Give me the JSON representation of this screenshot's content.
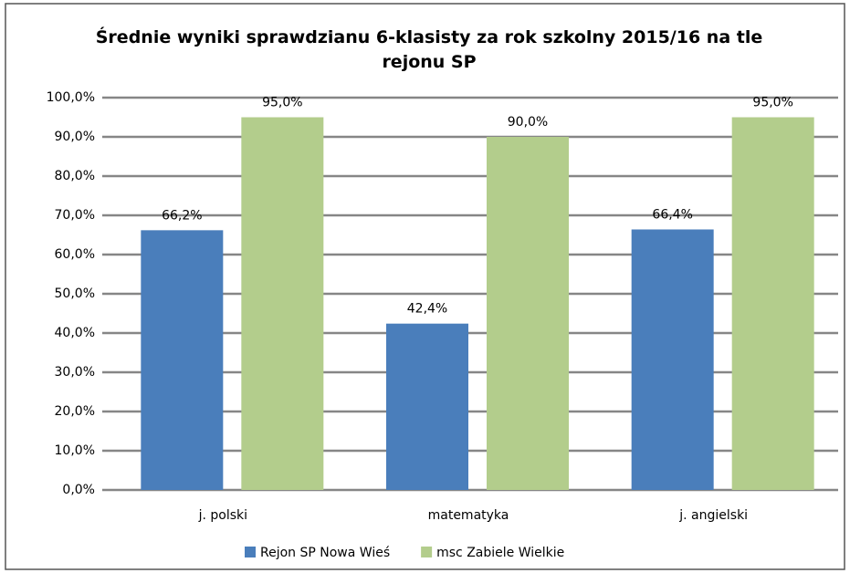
{
  "chart_data": {
    "type": "bar",
    "title": "Średnie wyniki sprawdzianu 6-klasisty za rok szkolny 2015/16 na tle rejonu SP",
    "categories": [
      "j. polski",
      "matematyka",
      "j. angielski"
    ],
    "series": [
      {
        "name": "Rejon SP Nowa Wieś",
        "color": "#4a7ebb",
        "values": [
          66.2,
          42.4,
          66.4
        ],
        "value_labels": [
          "66,2%",
          "42,4%",
          "66,4%"
        ]
      },
      {
        "name": "msc Zabiele Wielkie",
        "color": "#b3cd8c",
        "values": [
          95.0,
          90.0,
          95.0
        ],
        "value_labels": [
          "95,0%",
          "90,0%",
          "95,0%"
        ]
      }
    ],
    "ylim": [
      0,
      100
    ],
    "yticks": [
      {
        "value": 0,
        "label": "0,0%"
      },
      {
        "value": 10,
        "label": "10,0%"
      },
      {
        "value": 20,
        "label": "20,0%"
      },
      {
        "value": 30,
        "label": "30,0%"
      },
      {
        "value": 40,
        "label": "40,0%"
      },
      {
        "value": 50,
        "label": "50,0%"
      },
      {
        "value": 60,
        "label": "60,0%"
      },
      {
        "value": 70,
        "label": "70,0%"
      },
      {
        "value": 80,
        "label": "80,0%"
      },
      {
        "value": 90,
        "label": "90,0%"
      },
      {
        "value": 100,
        "label": "100,0%"
      }
    ],
    "grid": true,
    "legend": "bottom"
  }
}
